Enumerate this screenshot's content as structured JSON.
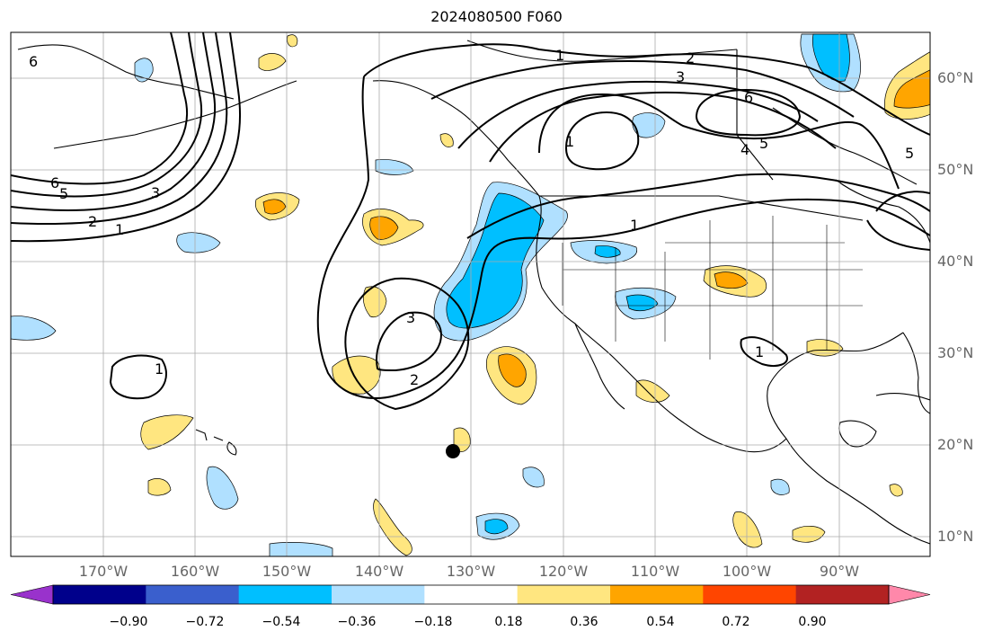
{
  "title": "2024080500 F060",
  "lon_labels": [
    "170°W",
    "160°W",
    "150°W",
    "140°W",
    "130°W",
    "120°W",
    "110°W",
    "100°W",
    "90°W"
  ],
  "lat_labels": [
    "60°N",
    "50°N",
    "40°N",
    "30°N",
    "20°N",
    "10°N"
  ],
  "contour_labels": [
    "6",
    "1",
    "2",
    "3",
    "6",
    "5",
    "4",
    "5",
    "6",
    "5",
    "3",
    "2",
    "1",
    "1",
    "3",
    "2",
    "1",
    "1",
    "1"
  ],
  "colorbar": {
    "ticks": [
      "−0.90",
      "−0.72",
      "−0.54",
      "−0.36",
      "−0.18",
      "0.18",
      "0.36",
      "0.54",
      "0.72",
      "0.90"
    ],
    "colors": [
      "#9932cc",
      "#00008b",
      "#3a5fcd",
      "#00bfff",
      "#b0e0ff",
      "#ffffff",
      "#ffe680",
      "#ffa500",
      "#ff4500",
      "#b22222",
      "#ff88aa"
    ]
  },
  "colors": {
    "frame": "#000000",
    "grid": "#aaaaaa",
    "contour": "#000000",
    "coast": "#000000",
    "axis_label": "#666666"
  },
  "marker": "storm-center-dot"
}
